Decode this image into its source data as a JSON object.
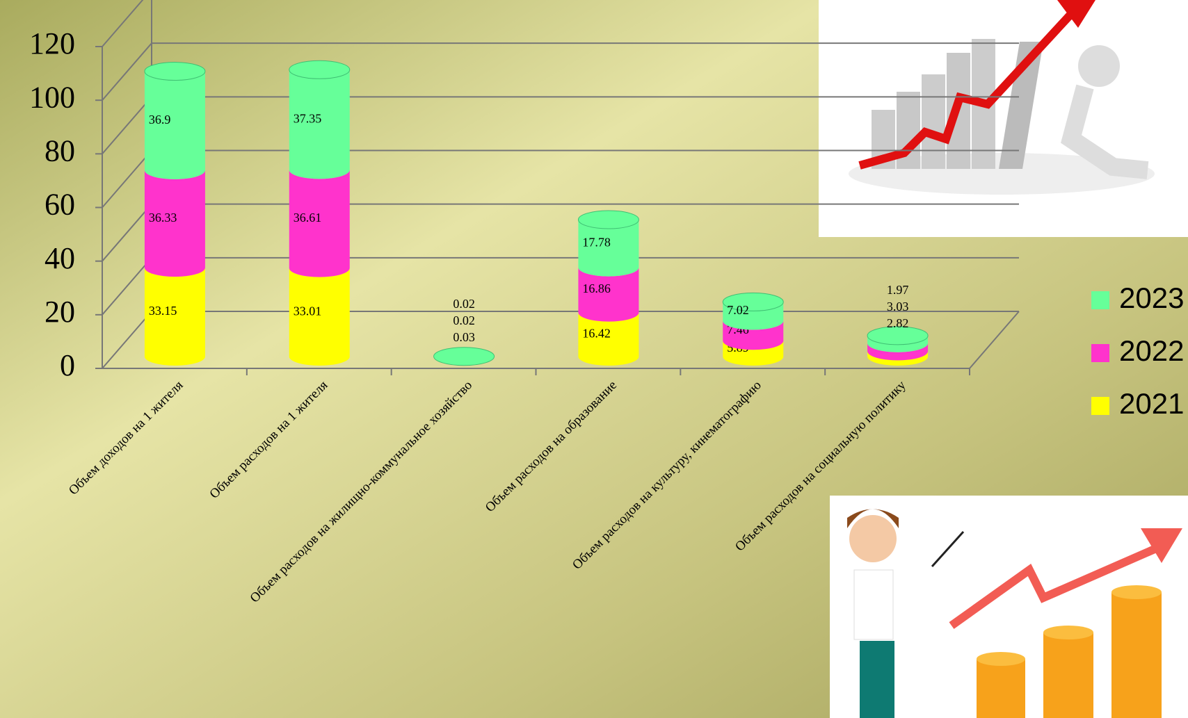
{
  "chart_data": {
    "type": "bar3d_stacked",
    "categories": [
      "Объем доходов на 1 жителя",
      "Объем расходов на 1 жителя",
      "Объем расходов на жилищно-коммунальное хозяйство",
      "Объем расходов на образование",
      "Объем расходов на культуру, кинематографию",
      "Объем расходов на социальную политику"
    ],
    "series": [
      {
        "name": "2021",
        "color": "#ffff00",
        "values": [
          33.15,
          33.01,
          0.02,
          16.42,
          5.89,
          1.97
        ]
      },
      {
        "name": "2022",
        "color": "#ff33cc",
        "values": [
          36.33,
          36.61,
          0.02,
          16.86,
          7.46,
          3.03
        ]
      },
      {
        "name": "2023",
        "color": "#66ff99",
        "values": [
          36.9,
          37.35,
          0.03,
          17.78,
          7.02,
          2.82
        ]
      }
    ],
    "ylim": [
      0,
      120
    ],
    "yticks": [
      0,
      20,
      40,
      60,
      80,
      100,
      120
    ],
    "grid": true,
    "legend": "right"
  }
}
